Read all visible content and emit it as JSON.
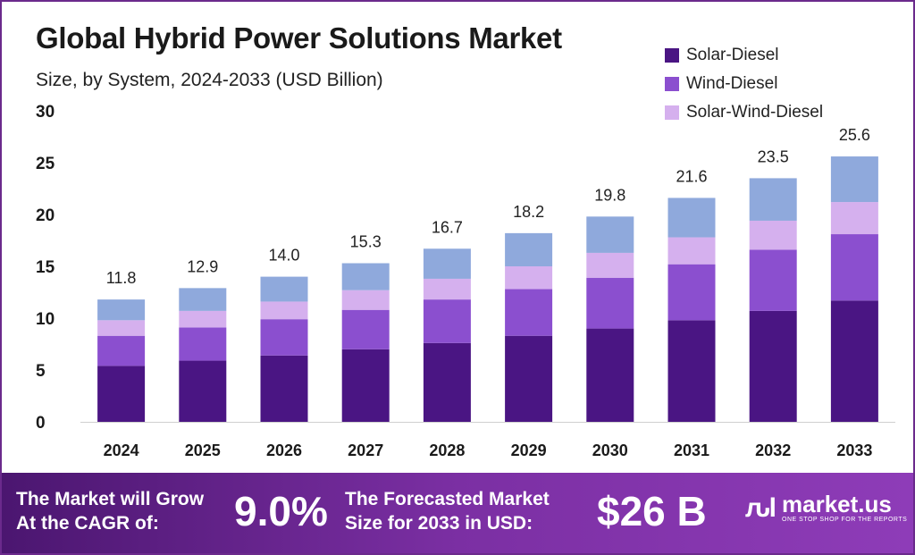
{
  "header": {
    "title": "Global Hybrid Power Solutions Market",
    "subtitle": "Size, by System, 2024-2033 (USD Billion)"
  },
  "legend": [
    {
      "label": "Solar-Diesel",
      "color": "#4a1583"
    },
    {
      "label": "Wind-Diesel",
      "color": "#8b4fcf"
    },
    {
      "label": "Solar-Wind-Diesel",
      "color": "#d5b0ee"
    }
  ],
  "chart_data": {
    "type": "bar",
    "stacked": true,
    "title": "Global Hybrid Power Solutions Market",
    "subtitle": "Size, by System, 2024-2033 (USD Billion)",
    "categories": [
      "2024",
      "2025",
      "2026",
      "2027",
      "2028",
      "2029",
      "2030",
      "2031",
      "2032",
      "2033"
    ],
    "ylim": [
      0,
      30
    ],
    "yticks": [
      0,
      5,
      10,
      15,
      20,
      25,
      30
    ],
    "grid": false,
    "legend_position": "top-right",
    "totals": [
      11.8,
      12.9,
      14.0,
      15.3,
      16.7,
      18.2,
      19.8,
      21.6,
      23.5,
      25.6
    ],
    "total_labels": [
      "11.8",
      "12.9",
      "14.0",
      "15.3",
      "16.7",
      "18.2",
      "19.8",
      "21.6",
      "23.5",
      "25.6"
    ],
    "series": [
      {
        "name": "Solar-Diesel",
        "color": "#4a1583",
        "values": [
          5.4,
          5.9,
          6.4,
          7.0,
          7.6,
          8.3,
          9.0,
          9.8,
          10.7,
          11.7
        ]
      },
      {
        "name": "Wind-Diesel",
        "color": "#8b4fcf",
        "values": [
          2.9,
          3.2,
          3.5,
          3.8,
          4.2,
          4.5,
          4.9,
          5.4,
          5.9,
          6.4
        ]
      },
      {
        "name": "Solar-Wind-Diesel",
        "color": "#d5b0ee",
        "values": [
          1.5,
          1.6,
          1.7,
          1.9,
          2.0,
          2.2,
          2.4,
          2.6,
          2.8,
          3.1
        ]
      },
      {
        "color": "#8fa9dc",
        "values": [
          2.0,
          2.2,
          2.4,
          2.6,
          2.9,
          3.2,
          3.5,
          3.8,
          4.1,
          4.4
        ]
      }
    ]
  },
  "footer": {
    "cagr_label_line1": "The Market will Grow",
    "cagr_label_line2": "At the CAGR of:",
    "cagr_value": "9.0%",
    "forecast_label_line1": "The Forecasted Market",
    "forecast_label_line2": "Size for 2033 in USD:",
    "forecast_value": "$26 B",
    "logo_name": "market.us",
    "logo_tagline": "ONE STOP SHOP FOR THE REPORTS"
  }
}
